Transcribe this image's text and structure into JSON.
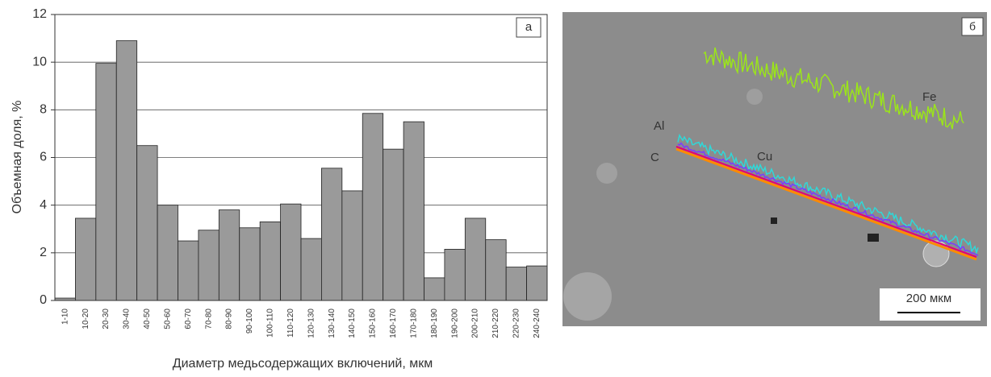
{
  "chart_data": {
    "type": "bar",
    "panel_label": "а",
    "ylabel": "Объемная доля, %",
    "xlabel": "Диаметр медьсодержащих включений, мкм",
    "categories": [
      "1-10",
      "10-20",
      "20-30",
      "30-40",
      "40-50",
      "50-60",
      "60-70",
      "70-80",
      "80-90",
      "90-100",
      "100-110",
      "110-120",
      "120-130",
      "130-140",
      "140-150",
      "150-160",
      "160-170",
      "170-180",
      "180-190",
      "190-200",
      "200-210",
      "210-220",
      "220-230",
      "240-240"
    ],
    "values": [
      0.1,
      3.45,
      9.95,
      10.9,
      6.5,
      4.0,
      2.5,
      2.95,
      3.8,
      3.05,
      3.3,
      4.05,
      2.6,
      5.55,
      4.6,
      7.85,
      6.35,
      7.5,
      0.95,
      2.15,
      3.45,
      2.55,
      1.4,
      1.45
    ],
    "color": "#9a9a9a",
    "ylim": [
      0,
      12
    ],
    "yticks": [
      0,
      2,
      4,
      6,
      8,
      10,
      12
    ],
    "grid": true
  },
  "micrograph": {
    "panel_label": "б",
    "labels": [
      "Al",
      "C",
      "Cu",
      "Fe"
    ],
    "scale_bar": "200 мкм"
  }
}
